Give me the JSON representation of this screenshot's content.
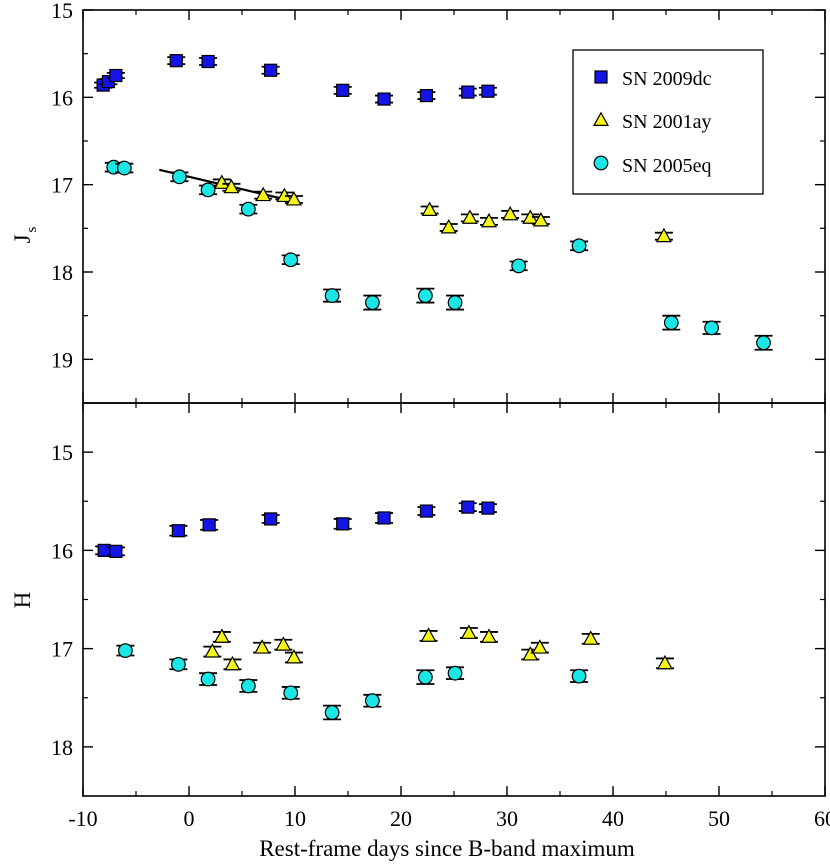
{
  "chart_data": {
    "type": "scatter",
    "xlabel": "Rest-frame days since B-band maximum",
    "xlim": [
      -10,
      60
    ],
    "x_ticks": [
      "-10",
      "0",
      "10",
      "20",
      "30",
      "40",
      "50",
      "60"
    ],
    "x_tick_values": [
      -10,
      0,
      10,
      20,
      30,
      40,
      50,
      60
    ],
    "legend": {
      "placement": "top-right of upper panel",
      "entries": [
        {
          "label": "SN 2009dc",
          "series": "sn2009dc"
        },
        {
          "label": "SN 2001ay",
          "series": "sn2001ay"
        },
        {
          "label": "SN 2005eq",
          "series": "sn2005eq"
        }
      ]
    },
    "series_styles": {
      "sn2009dc": {
        "marker": "square",
        "color": "#1414e6"
      },
      "sn2001ay": {
        "marker": "triangle",
        "color": "#f5f51a"
      },
      "sn2005eq": {
        "marker": "circle",
        "color": "#1ae6e6"
      }
    },
    "panels": [
      {
        "id": "js",
        "ylabel": "J",
        "ylabel_sub": "s",
        "ylim": [
          19.5,
          15
        ],
        "y_inverted": true,
        "y_ticks": [
          "15",
          "16",
          "17",
          "18",
          "19"
        ],
        "y_tick_values": [
          15,
          16,
          17,
          18,
          19
        ],
        "series": [
          {
            "name": "SN 2009dc",
            "key": "sn2009dc",
            "points": [
              [
                -8.1,
                15.86,
                0.03
              ],
              [
                -7.6,
                15.82,
                0.03
              ],
              [
                -6.9,
                15.75,
                0.03
              ],
              [
                -1.2,
                15.58,
                0.04
              ],
              [
                1.8,
                15.59,
                0.04
              ],
              [
                7.7,
                15.69,
                0.04
              ],
              [
                14.5,
                15.92,
                0.04
              ],
              [
                18.4,
                16.02,
                0.04
              ],
              [
                22.4,
                15.98,
                0.04
              ],
              [
                26.3,
                15.94,
                0.04
              ],
              [
                28.2,
                15.93,
                0.04
              ]
            ]
          },
          {
            "name": "SN 2001ay",
            "key": "sn2001ay",
            "points": [
              [
                3.1,
                16.98,
                0.04
              ],
              [
                4.0,
                17.03,
                0.04
              ],
              [
                7.0,
                17.12,
                0.04
              ],
              [
                9.0,
                17.13,
                0.04
              ],
              [
                9.9,
                17.17,
                0.04
              ],
              [
                22.7,
                17.29,
                0.04
              ],
              [
                24.5,
                17.49,
                0.04
              ],
              [
                26.5,
                17.38,
                0.04
              ],
              [
                28.3,
                17.42,
                0.04
              ],
              [
                30.3,
                17.34,
                0.04
              ],
              [
                32.2,
                17.38,
                0.04
              ],
              [
                33.2,
                17.41,
                0.04
              ],
              [
                44.8,
                17.59,
                0.04
              ]
            ]
          },
          {
            "name": "SN 2005eq",
            "key": "sn2005eq",
            "points": [
              [
                -7.1,
                16.8,
                0.05
              ],
              [
                -6.1,
                16.81,
                0.05
              ],
              [
                -0.9,
                16.91,
                0.05
              ],
              [
                1.8,
                17.06,
                0.05
              ],
              [
                5.6,
                17.28,
                0.05
              ],
              [
                9.6,
                17.86,
                0.05
              ],
              [
                13.5,
                18.27,
                0.07
              ],
              [
                17.3,
                18.35,
                0.08
              ],
              [
                22.3,
                18.27,
                0.08
              ],
              [
                25.1,
                18.35,
                0.08
              ],
              [
                31.1,
                17.93,
                0.05
              ],
              [
                36.8,
                17.7,
                0.05
              ],
              [
                45.5,
                18.58,
                0.08
              ],
              [
                49.3,
                18.64,
                0.07
              ],
              [
                54.2,
                18.81,
                0.08
              ]
            ]
          }
        ],
        "fit_line": {
          "x": [
            -2.8,
            10.2
          ],
          "y": [
            16.83,
            17.2
          ]
        }
      },
      {
        "id": "h",
        "ylabel": "H",
        "ylim": [
          18.5,
          14.5
        ],
        "y_inverted": true,
        "y_ticks": [
          "15",
          "16",
          "17",
          "18"
        ],
        "y_tick_values": [
          15,
          16,
          17,
          18
        ],
        "series": [
          {
            "name": "SN 2009dc",
            "key": "sn2009dc",
            "points": [
              [
                -8.0,
                16.0,
                0.04
              ],
              [
                -6.9,
                16.01,
                0.04
              ],
              [
                -1.0,
                15.8,
                0.05
              ],
              [
                1.9,
                15.74,
                0.05
              ],
              [
                7.7,
                15.68,
                0.04
              ],
              [
                14.5,
                15.73,
                0.05
              ],
              [
                18.4,
                15.67,
                0.05
              ],
              [
                22.4,
                15.6,
                0.04
              ],
              [
                26.3,
                15.56,
                0.04
              ],
              [
                28.2,
                15.57,
                0.04
              ]
            ]
          },
          {
            "name": "SN 2001ay",
            "key": "sn2001ay",
            "points": [
              [
                2.2,
                17.03,
                0.05
              ],
              [
                3.1,
                16.88,
                0.05
              ],
              [
                4.1,
                17.16,
                0.05
              ],
              [
                6.9,
                16.99,
                0.05
              ],
              [
                8.9,
                16.96,
                0.05
              ],
              [
                9.9,
                17.09,
                0.05
              ],
              [
                22.6,
                16.87,
                0.05
              ],
              [
                26.4,
                16.84,
                0.05
              ],
              [
                28.3,
                16.88,
                0.05
              ],
              [
                32.2,
                17.06,
                0.05
              ],
              [
                33.1,
                16.99,
                0.05
              ],
              [
                37.9,
                16.9,
                0.05
              ],
              [
                44.9,
                17.15,
                0.05
              ]
            ]
          },
          {
            "name": "SN 2005eq",
            "key": "sn2005eq",
            "points": [
              [
                -6.0,
                17.02,
                0.05
              ],
              [
                -1.0,
                17.16,
                0.05
              ],
              [
                1.8,
                17.31,
                0.06
              ],
              [
                5.6,
                17.38,
                0.06
              ],
              [
                9.6,
                17.45,
                0.06
              ],
              [
                13.5,
                17.65,
                0.07
              ],
              [
                17.3,
                17.53,
                0.06
              ],
              [
                22.3,
                17.29,
                0.07
              ],
              [
                25.1,
                17.25,
                0.06
              ],
              [
                36.8,
                17.28,
                0.06
              ]
            ]
          }
        ]
      }
    ]
  }
}
